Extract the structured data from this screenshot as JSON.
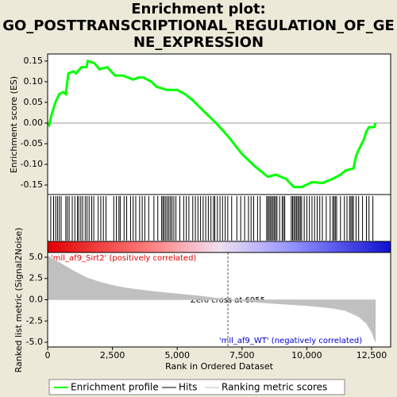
{
  "chart_data": {
    "type": "gsea",
    "title": [
      "Enrichment plot:",
      "GO_POSTTRANSCRIPTIONAL_REGULATION_OF_GE",
      "NE_EXPRESSION"
    ],
    "xlabel": "Rank in Ordered Dataset",
    "ylabel": "Enrichment score (ES)",
    "y2label": "Ranked list metric (Signal2Noise)",
    "xlim": [
      0,
      13235
    ],
    "xticks": [
      0,
      {
        "value": 2500,
        "label": "2,500"
      },
      {
        "value": 5000,
        "label": "5,000"
      },
      {
        "value": 7500,
        "label": "7,500"
      },
      {
        "value": 10000,
        "label": "10,000"
      },
      {
        "value": 12500,
        "label": "12,500"
      }
    ],
    "ylim": [
      -0.173,
      0.167
    ],
    "yticks": [
      0.15,
      {
        "value": 0.1,
        "label": "0.10"
      },
      0.05,
      {
        "value": 0,
        "label": "0.00"
      },
      -0.05,
      {
        "value": -0.1,
        "label": "-0.10"
      },
      -0.15
    ],
    "y2lim": [
      -5.56,
      5.56
    ],
    "y2ticks": [
      {
        "value": 5,
        "label": "5.0"
      },
      2.5,
      {
        "value": 0,
        "label": "0.0"
      },
      -2.5,
      {
        "value": -5,
        "label": "-5.0"
      }
    ],
    "es": {
      "name": "Enrichment profile",
      "color": "#00ff00",
      "x": [
        0,
        60,
        150,
        300,
        450,
        600,
        700,
        800,
        1000,
        1100,
        1300,
        1500,
        1550,
        1800,
        2000,
        2300,
        2600,
        2900,
        3300,
        3500,
        3700,
        4000,
        4200,
        4600,
        5000,
        5300,
        5600,
        6000,
        6500,
        7000,
        7500,
        8000,
        8500,
        8800,
        9200,
        9500,
        9800,
        10200,
        10600,
        11000,
        11300,
        11500,
        11800,
        11900,
        12000,
        12200,
        12300,
        12400,
        12600,
        12650
      ],
      "values": [
        0,
        -0.005,
        0.02,
        0.05,
        0.07,
        0.075,
        0.07,
        0.12,
        0.125,
        0.12,
        0.135,
        0.135,
        0.15,
        0.145,
        0.13,
        0.135,
        0.115,
        0.115,
        0.105,
        0.11,
        0.11,
        0.1,
        0.088,
        0.08,
        0.08,
        0.07,
        0.055,
        0.03,
        0,
        -0.035,
        -0.075,
        -0.105,
        -0.13,
        -0.125,
        -0.135,
        -0.155,
        -0.155,
        -0.143,
        -0.145,
        -0.135,
        -0.125,
        -0.115,
        -0.11,
        -0.08,
        -0.065,
        -0.04,
        -0.02,
        -0.01,
        -0.01,
        0
      ]
    },
    "hits": {
      "name": "Hits",
      "color": "#000000",
      "x": [
        120,
        230,
        310,
        380,
        450,
        520,
        700,
        760,
        830,
        950,
        1050,
        1150,
        1200,
        1280,
        1350,
        1450,
        1520,
        1600,
        1700,
        1780,
        1950,
        2050,
        2150,
        2250,
        2550,
        2650,
        2750,
        2800,
        2950,
        3050,
        3200,
        3300,
        3400,
        3550,
        3650,
        3750,
        3900,
        4100,
        4250,
        4400,
        4450,
        4500,
        4560,
        4620,
        4680,
        4740,
        4800,
        4870,
        4950,
        5100,
        5250,
        5350,
        5450,
        5600,
        5700,
        5800,
        5900,
        6000,
        6100,
        6200,
        6300,
        6400,
        6450,
        6550,
        6650,
        6750,
        6850,
        6950,
        7100,
        7300,
        7450,
        7600,
        7750,
        7850,
        7950,
        8100,
        8200,
        8450,
        8500,
        8550,
        8600,
        8650,
        8700,
        8750,
        8800,
        8850,
        8950,
        9050,
        9100,
        9150,
        9400,
        9450,
        9500,
        9550,
        9600,
        9650,
        9700,
        9750,
        9800,
        9900,
        10000,
        10100,
        10200,
        10300,
        10400,
        10500,
        10600,
        10750,
        10900,
        11000,
        11050,
        11100,
        11150,
        11300,
        11450,
        11550,
        11650,
        11700,
        11750,
        11800,
        11900,
        12000,
        12150,
        12300,
        12400,
        12550
      ]
    },
    "metric": {
      "name": "Ranking metric scores",
      "color": "#c0c0c0",
      "x": [
        0,
        200,
        500,
        1000,
        1500,
        2000,
        2500,
        3000,
        4000,
        5000,
        6000,
        6955,
        8000,
        9000,
        10000,
        11000,
        11500,
        12000,
        12300,
        12500,
        12650
      ],
      "values": [
        5.2,
        4.8,
        4.3,
        3.4,
        2.6,
        2.1,
        1.7,
        1.4,
        1.0,
        0.7,
        0.4,
        0,
        -0.3,
        -0.5,
        -0.7,
        -1.0,
        -1.3,
        -2.0,
        -2.8,
        -3.8,
        -5.0
      ]
    },
    "zero_cross": 6955,
    "annotations": [
      "'mll_af9_Sirt2' (positively correlated)",
      "Zero cross at 6955",
      "'mll_af9_WT' (negatively correlated)"
    ]
  }
}
